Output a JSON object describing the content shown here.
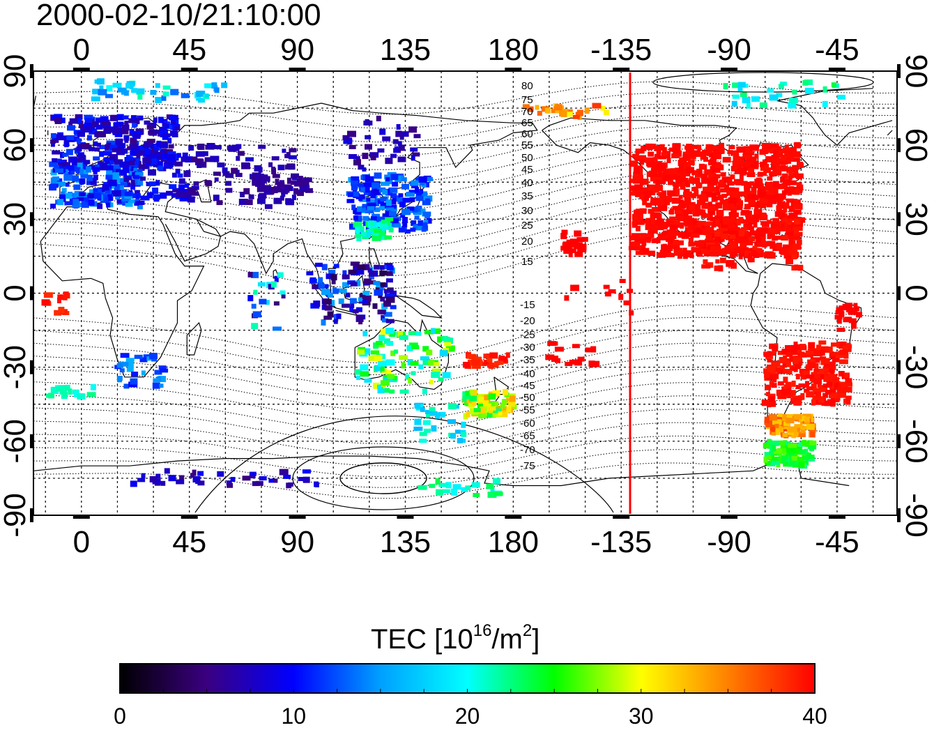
{
  "title": "2000-02-10/21:10:00",
  "top_lon_labels": [
    "0",
    "45",
    "90",
    "135",
    "180",
    "-135",
    "-90",
    "-45"
  ],
  "bottom_lon_labels": [
    "0",
    "45",
    "90",
    "135",
    "180",
    "-135",
    "-90",
    "-45"
  ],
  "left_lat_labels": [
    "90",
    "60",
    "30",
    "0",
    "-30",
    "-60",
    "-90"
  ],
  "right_lat_labels": [
    "90",
    "60",
    "30",
    "0",
    "-30",
    "-60",
    "-90"
  ],
  "contour_labels_north": [
    "80",
    "75",
    "70",
    "65",
    "60",
    "55",
    "50",
    "45",
    "40",
    "35",
    "30",
    "25",
    "20",
    "15"
  ],
  "contour_labels_south": [
    "-15",
    "-20",
    "-25",
    "-30",
    "-35",
    "-40",
    "-45",
    "-50",
    "-55",
    "-60",
    "-65",
    "-70",
    "-75"
  ],
  "colorbar": {
    "title_text": "TEC  [10",
    "title_sup": "16",
    "title_mid": "/m",
    "title_sup2": "2",
    "title_end": "]",
    "ticks": [
      "0",
      "10",
      "20",
      "30",
      "40"
    ],
    "stops": [
      "#000000",
      "#3a0080",
      "#0000ff",
      "#00a0ff",
      "#00ffff",
      "#00ff00",
      "#ffff00",
      "#ff8000",
      "#ff0000"
    ]
  },
  "terminator_color": "#ff0000",
  "map_data": {
    "projection": "equirectangular",
    "lon_range_display": [
      -20,
      340
    ],
    "lat_range": [
      -90,
      90
    ],
    "terminator_lon": -133,
    "tec_regions": [
      {
        "region": "Europe",
        "lon": [
          -10,
          40
        ],
        "lat": [
          35,
          72
        ],
        "tec": 9
      },
      {
        "region": "East Asia / Japan",
        "lon": [
          115,
          145
        ],
        "lat": [
          25,
          45
        ],
        "tec": 12
      },
      {
        "region": "North America",
        "lon": [
          -130,
          -60
        ],
        "lat": [
          15,
          60
        ],
        "tec": 40
      },
      {
        "region": "South America",
        "lon": [
          -75,
          -40
        ],
        "lat": [
          -55,
          -20
        ],
        "tec": 39
      },
      {
        "region": "Antarctic Peninsula",
        "lon": [
          -75,
          -55
        ],
        "lat": [
          -70,
          -60
        ],
        "tec": 24
      },
      {
        "region": "New Zealand",
        "lon": [
          165,
          180
        ],
        "lat": [
          -48,
          -35
        ],
        "tec": 30
      },
      {
        "region": "Australia",
        "lon": [
          115,
          155
        ],
        "lat": [
          -40,
          -15
        ],
        "tec": 20
      }
    ]
  }
}
